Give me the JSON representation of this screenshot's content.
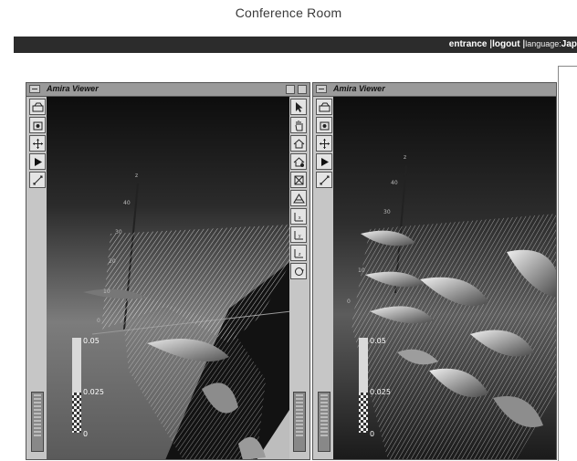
{
  "page": {
    "title": "Conference Room"
  },
  "nav": {
    "links": [
      {
        "label": "entrance"
      },
      {
        "label": "logout"
      }
    ],
    "language_label": "language:",
    "language_value": "Jap"
  },
  "viewers": [
    {
      "title": "Amira Viewer",
      "axis": {
        "z_label": "z",
        "ticks": [
          "40",
          "30",
          "20",
          "10",
          "0"
        ]
      },
      "legend": {
        "top": "0.05",
        "mid": "0.025",
        "bottom": "0"
      }
    },
    {
      "title": "Amira Viewer",
      "axis": {
        "z_label": "z",
        "ticks": [
          "40",
          "30",
          "10",
          "0"
        ]
      },
      "legend": {
        "top": "0.05",
        "mid": "0.025",
        "bottom": "0"
      }
    }
  ],
  "toolbars": {
    "left_icons": [
      "camera-icon",
      "snapshot-icon",
      "move-icon",
      "play-icon",
      "zoom-icon"
    ],
    "right_icons": [
      "pointer-icon",
      "hand-icon",
      "home-icon",
      "set-home-icon",
      "view-all-icon",
      "perspective-icon",
      "axis-xy-icon",
      "axis-xz-icon",
      "axis-yz-icon",
      "rotate-icon"
    ]
  }
}
